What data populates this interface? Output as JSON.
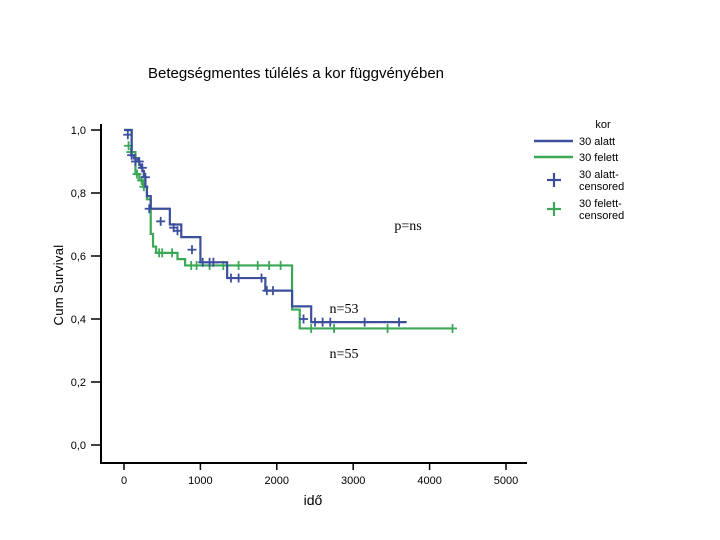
{
  "chart_data": {
    "type": "line",
    "title": "Betegségmentes túlélés a kor függvényében",
    "xlabel": "idő",
    "ylabel": "Cum Survival",
    "xlim": [
      -250,
      5000
    ],
    "ylim": [
      0.0,
      1.0
    ],
    "x_ticks": [
      0,
      1000,
      2000,
      3000,
      4000,
      5000
    ],
    "x_tick_labels": [
      "0",
      "1000",
      "2000",
      "3000",
      "4000",
      "5000"
    ],
    "y_ticks": [
      0.0,
      0.2,
      0.4,
      0.6,
      0.8,
      1.0
    ],
    "y_tick_labels": [
      "0,0",
      "0,2",
      "0,4",
      "0,6",
      "0,8",
      "1,0"
    ],
    "legend": {
      "title": "kor",
      "position": "top-right",
      "entries": [
        "30 alatt",
        "30 felett",
        "30 alatt-censored",
        "30 felett-censored"
      ]
    },
    "annotations": [
      "p=ns",
      "n=53",
      "n=55"
    ],
    "colors": {
      "alatt": "#3c4f9c",
      "felett": "#3aa856"
    },
    "series": [
      {
        "name": "30 alatt",
        "step_x": [
          0,
          100,
          130,
          180,
          200,
          220,
          240,
          260,
          280,
          300,
          350,
          600,
          750,
          1000,
          1350,
          1850,
          2200,
          2450,
          3700
        ],
        "step_y": [
          1.0,
          0.92,
          0.91,
          0.9,
          0.89,
          0.88,
          0.87,
          0.85,
          0.82,
          0.79,
          0.75,
          0.7,
          0.66,
          0.58,
          0.53,
          0.49,
          0.44,
          0.39,
          0.39
        ],
        "censored_x": [
          50,
          100,
          150,
          200,
          240,
          280,
          330,
          480,
          650,
          700,
          890,
          1030,
          1120,
          1170,
          1400,
          1500,
          1800,
          1870,
          1950,
          2350,
          2500,
          2600,
          2700,
          3150,
          3600
        ],
        "censored_y": [
          0.985,
          0.92,
          0.9,
          0.9,
          0.88,
          0.85,
          0.75,
          0.71,
          0.69,
          0.68,
          0.62,
          0.58,
          0.58,
          0.58,
          0.53,
          0.53,
          0.53,
          0.49,
          0.49,
          0.4,
          0.39,
          0.39,
          0.39,
          0.39,
          0.39
        ]
      },
      {
        "name": "30 felett",
        "step_x": [
          0,
          100,
          150,
          200,
          250,
          300,
          350,
          380,
          420,
          500,
          700,
          800,
          2100,
          2200,
          2300,
          4300
        ],
        "step_y": [
          1.0,
          0.93,
          0.86,
          0.84,
          0.82,
          0.78,
          0.67,
          0.63,
          0.61,
          0.61,
          0.59,
          0.57,
          0.57,
          0.43,
          0.37,
          0.37
        ],
        "censored_x": [
          60,
          90,
          170,
          230,
          260,
          460,
          500,
          630,
          880,
          950,
          1120,
          1300,
          1500,
          1750,
          1900,
          2050,
          2450,
          2750,
          3450,
          4300
        ],
        "censored_y": [
          0.95,
          0.93,
          0.86,
          0.84,
          0.82,
          0.61,
          0.61,
          0.61,
          0.57,
          0.57,
          0.57,
          0.57,
          0.57,
          0.57,
          0.57,
          0.57,
          0.37,
          0.37,
          0.37,
          0.37
        ]
      }
    ]
  }
}
